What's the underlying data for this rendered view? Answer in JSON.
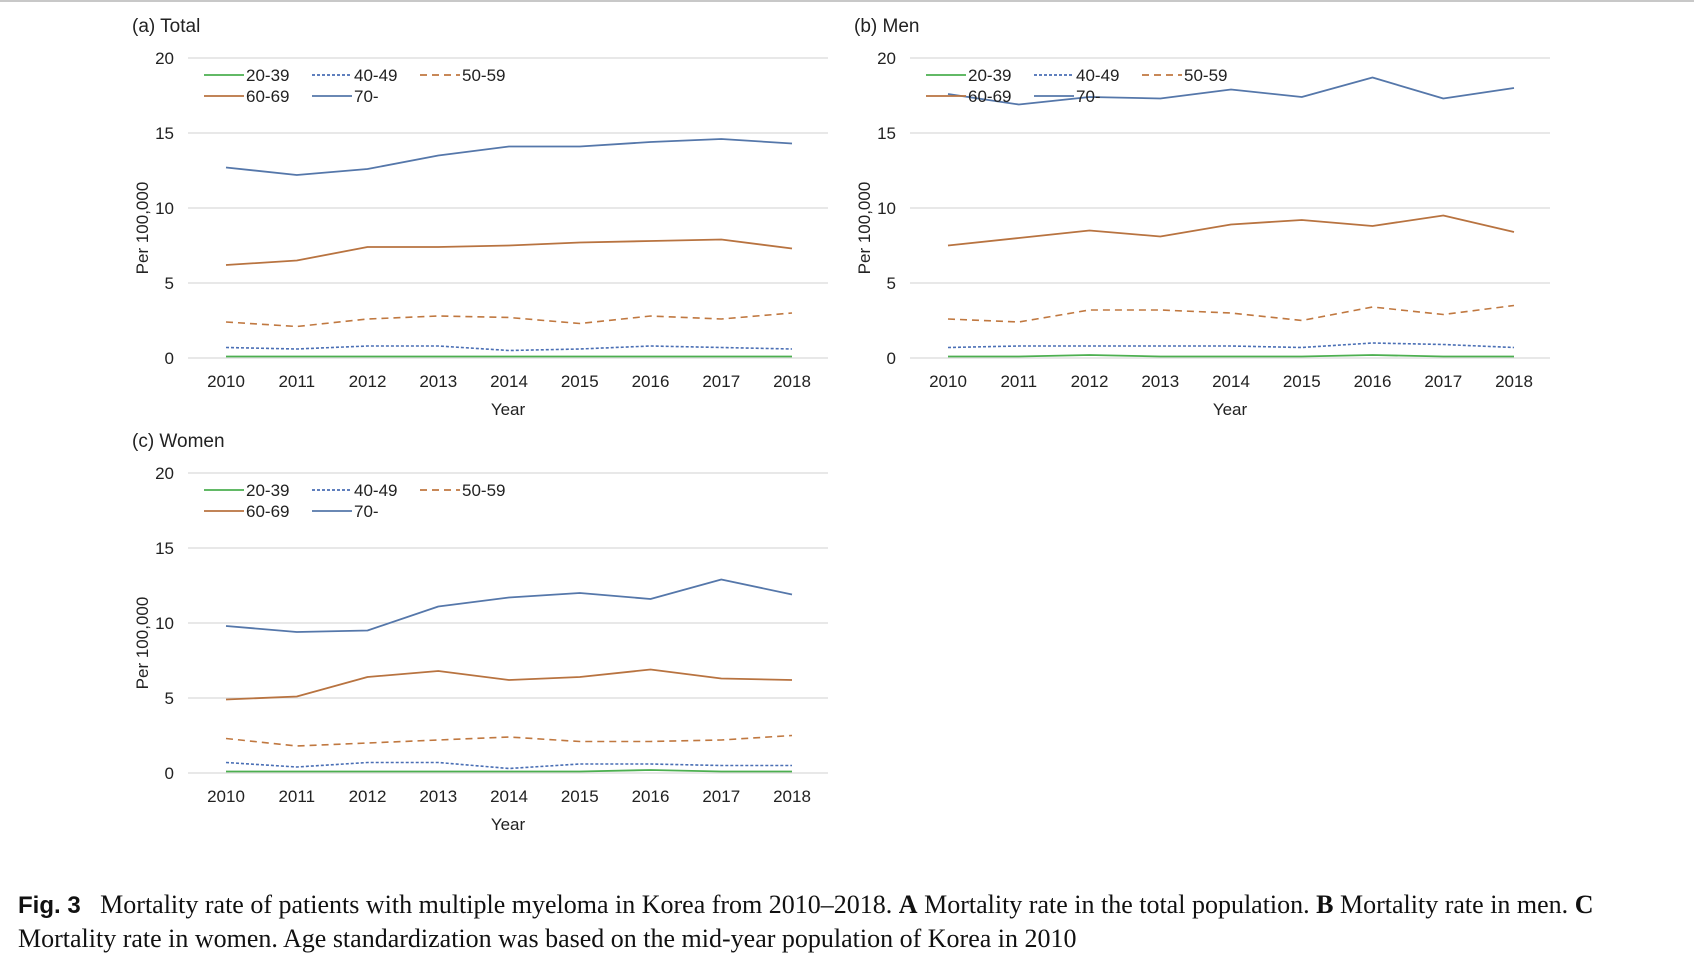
{
  "caption": {
    "fig_label": "Fig. 3",
    "part1": "Mortality rate of patients with multiple myeloma in Korea from 2010–2018.",
    "a_label": "A",
    "part2": "Mortality rate in the total population.",
    "b_label": "B",
    "part3": "Mortality rate in men.",
    "c_label": "C",
    "part4": "Mortality rate in women. Age standardization was based on the mid-year population of Korea in 2010"
  },
  "colors": {
    "20-39": "#4caf50",
    "40-49": "#4a6fb5",
    "50-59": "#c07840",
    "60-69": "#b87340",
    "70-": "#5577aa",
    "grid": "#d9d9d9"
  },
  "chart_data": [
    {
      "type": "line",
      "title": "(a) Total",
      "xlabel": "Year",
      "ylabel": "Per 100,000",
      "x": [
        "2010",
        "2011",
        "2012",
        "2013",
        "2014",
        "2015",
        "2016",
        "2017",
        "2018"
      ],
      "ylim": [
        0,
        20
      ],
      "yticks": [
        "0",
        "5",
        "10",
        "15",
        "20"
      ],
      "grid": true,
      "legend": "top-left",
      "series": [
        {
          "name": "20-39",
          "style": "solid",
          "values": [
            0.1,
            0.1,
            0.1,
            0.1,
            0.1,
            0.1,
            0.1,
            0.1,
            0.1
          ]
        },
        {
          "name": "40-49",
          "style": "dotted",
          "values": [
            0.7,
            0.6,
            0.8,
            0.8,
            0.5,
            0.6,
            0.8,
            0.7,
            0.6
          ]
        },
        {
          "name": "50-59",
          "style": "dashed",
          "values": [
            2.4,
            2.1,
            2.6,
            2.8,
            2.7,
            2.3,
            2.8,
            2.6,
            3.0
          ]
        },
        {
          "name": "60-69",
          "style": "solid",
          "values": [
            6.2,
            6.5,
            7.4,
            7.4,
            7.5,
            7.7,
            7.8,
            7.9,
            7.3
          ]
        },
        {
          "name": "70-",
          "style": "solid",
          "values": [
            12.7,
            12.2,
            12.6,
            13.5,
            14.1,
            14.1,
            14.4,
            14.6,
            14.3
          ]
        }
      ]
    },
    {
      "type": "line",
      "title": "(b) Men",
      "xlabel": "Year",
      "ylabel": "Per 100,000",
      "x": [
        "2010",
        "2011",
        "2012",
        "2013",
        "2014",
        "2015",
        "2016",
        "2017",
        "2018"
      ],
      "ylim": [
        0,
        20
      ],
      "yticks": [
        "0",
        "5",
        "10",
        "15",
        "20"
      ],
      "grid": true,
      "legend": "top-left",
      "series": [
        {
          "name": "20-39",
          "style": "solid",
          "values": [
            0.1,
            0.1,
            0.2,
            0.1,
            0.1,
            0.1,
            0.2,
            0.1,
            0.1
          ]
        },
        {
          "name": "40-49",
          "style": "dotted",
          "values": [
            0.7,
            0.8,
            0.8,
            0.8,
            0.8,
            0.7,
            1.0,
            0.9,
            0.7
          ]
        },
        {
          "name": "50-59",
          "style": "dashed",
          "values": [
            2.6,
            2.4,
            3.2,
            3.2,
            3.0,
            2.5,
            3.4,
            2.9,
            3.5
          ]
        },
        {
          "name": "60-69",
          "style": "solid",
          "values": [
            7.5,
            8.0,
            8.5,
            8.1,
            8.9,
            9.2,
            8.8,
            9.5,
            8.4
          ]
        },
        {
          "name": "70-",
          "style": "solid",
          "values": [
            17.6,
            16.9,
            17.4,
            17.3,
            17.9,
            17.4,
            18.7,
            17.3,
            18.0
          ]
        }
      ]
    },
    {
      "type": "line",
      "title": "(c) Women",
      "xlabel": "Year",
      "ylabel": "Per 100,000",
      "x": [
        "2010",
        "2011",
        "2012",
        "2013",
        "2014",
        "2015",
        "2016",
        "2017",
        "2018"
      ],
      "ylim": [
        0,
        20
      ],
      "yticks": [
        "0",
        "5",
        "10",
        "15",
        "20"
      ],
      "grid": true,
      "legend": "top-left",
      "series": [
        {
          "name": "20-39",
          "style": "solid",
          "values": [
            0.1,
            0.1,
            0.1,
            0.1,
            0.1,
            0.1,
            0.2,
            0.1,
            0.1
          ]
        },
        {
          "name": "40-49",
          "style": "dotted",
          "values": [
            0.7,
            0.4,
            0.7,
            0.7,
            0.3,
            0.6,
            0.6,
            0.5,
            0.5
          ]
        },
        {
          "name": "50-59",
          "style": "dashed",
          "values": [
            2.3,
            1.8,
            2.0,
            2.2,
            2.4,
            2.1,
            2.1,
            2.2,
            2.5
          ]
        },
        {
          "name": "60-69",
          "style": "solid",
          "values": [
            4.9,
            5.1,
            6.4,
            6.8,
            6.2,
            6.4,
            6.9,
            6.3,
            6.2
          ]
        },
        {
          "name": "70-",
          "style": "solid",
          "values": [
            9.8,
            9.4,
            9.5,
            11.1,
            11.7,
            12.0,
            11.6,
            12.9,
            11.9
          ]
        }
      ]
    }
  ]
}
